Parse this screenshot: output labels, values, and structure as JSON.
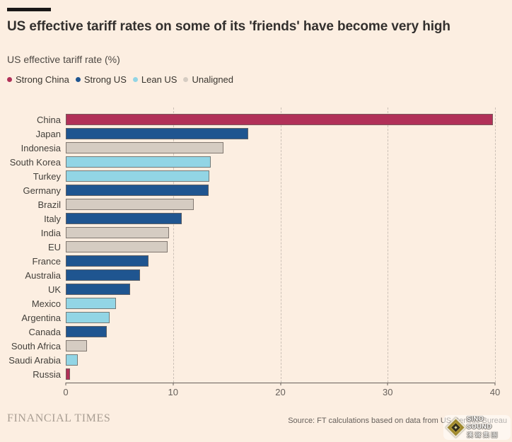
{
  "colors": {
    "background": "#FCEEE1",
    "accent_bar": "#1A1817",
    "title_text": "#33302E",
    "subtitle_text": "#4D4843",
    "category_label_text": "#43403B",
    "axis_text": "#66605B",
    "axis_line": "#66605B",
    "gridline": "#CBC0B6",
    "bar_border": "#6B635C",
    "ft_wordmark": "#A89D92",
    "source_text": "#66605B"
  },
  "header": {
    "title": "US effective tariff rates on some of its 'friends' have become very high",
    "subtitle": "US effective tariff rate (%)"
  },
  "legend": {
    "position": "top-left",
    "items": [
      {
        "label": "Strong China",
        "color": "#B13058"
      },
      {
        "label": "Strong US",
        "color": "#1F5590"
      },
      {
        "label": "Lean US",
        "color": "#92D5E5"
      },
      {
        "label": "Unaligned",
        "color": "#D5CCC2"
      }
    ]
  },
  "chart_data": {
    "type": "bar",
    "orientation": "horizontal",
    "title": "US effective tariff rates on some of its 'friends' have become very high",
    "xlabel": "US effective tariff rate (%)",
    "ylabel": "",
    "xlim": [
      0,
      40
    ],
    "xticks": [
      0,
      10,
      20,
      30,
      40
    ],
    "grid": "vertical-dashed",
    "legend_position": "top-left",
    "categories": [
      "China",
      "Japan",
      "Indonesia",
      "South Korea",
      "Turkey",
      "Germany",
      "Brazil",
      "Italy",
      "India",
      "EU",
      "France",
      "Australia",
      "UK",
      "Mexico",
      "Argentina",
      "Canada",
      "South Africa",
      "Saudi Arabia",
      "Russia"
    ],
    "values": [
      39.8,
      17.0,
      14.7,
      13.5,
      13.4,
      13.3,
      11.9,
      10.8,
      9.6,
      9.5,
      7.7,
      6.9,
      6.0,
      4.7,
      4.1,
      3.8,
      2.0,
      1.1,
      0.4
    ],
    "groups": [
      "Strong China",
      "Strong US",
      "Unaligned",
      "Lean US",
      "Lean US",
      "Strong US",
      "Unaligned",
      "Strong US",
      "Unaligned",
      "Unaligned",
      "Strong US",
      "Strong US",
      "Strong US",
      "Lean US",
      "Lean US",
      "Strong US",
      "Unaligned",
      "Lean US",
      "Strong China"
    ],
    "group_colors": {
      "Strong China": "#B13058",
      "Strong US": "#1F5590",
      "Lean US": "#92D5E5",
      "Unaligned": "#D5CCC2"
    }
  },
  "footer": {
    "brand": "FINANCIAL TIMES",
    "source": "Source: FT calculations based on data from US Census Bureau"
  },
  "watermark": {
    "line1": "SINO SOUND",
    "line2": "漢聲集團"
  }
}
